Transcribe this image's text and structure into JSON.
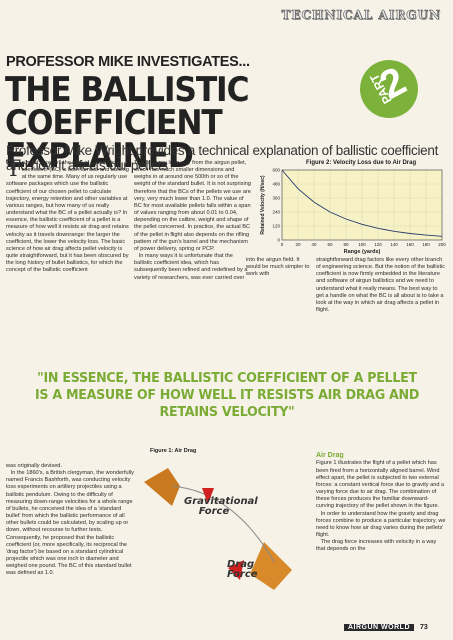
{
  "header": {
    "section": "TECHNICAL AIRGUN"
  },
  "kicker": "PROFESSOR MIKE INVESTIGATES...",
  "headline": {
    "line1": "THE BALLISTIC",
    "line2": "COEFFICIENT EXPLAINED"
  },
  "badge": {
    "word": "PART",
    "number": "2",
    "color": "#7db23a"
  },
  "subheading": "Professor Mike Wright provides a technical explanation of ballistic coefficient and how it affects our pellets",
  "body": {
    "col1": "o most shooters the idea of a 'ballistic coefficient' (BC) is both familiar and baffling at the same time. Many of us regularly use software packages which use the ballistic coefficient of our chosen pellet to calculate trajectory, energy retention and other variables at various ranges, but how many of us really understand what the BC of a pellet actually is? In essence, the ballistic coefficient of a pellet is a measure of how well it resists air drag and retains velocity as it travels downrange: the larger the coefficient, the lower the velocity loss. The basic science of how air drag affects pellet velocity is quite straightforward, but it has been obscured by the long history of bullet ballistics, for which the concept of the ballistic coefficient",
    "col1_dropcap": "T",
    "col2": "This is a very long way from the airgun pellet, which has much smaller dimensions and weighs in at around one 500th or so of the weight of the standard bullet. It is not surprising therefore that the BCs of the pellets we use are very, very much lower than 1.0. The value of BC for most available pellets falls within a span of values ranging from about 0.01 to 0.04, depending on the calibre, weight and shape of the pellet concerned. In practice, the actual BC of the pellet in flight also depends on the rifling pattern of the gun's barrel and the mechanism of power delivery, spring or PCP.\n   In many ways it is unfortunate that the ballistic coefficient idea, which has subsequently been refined and redefined by a variety of researchers, was ever carried over",
    "col2b": "into the airgun field. It would be much simpler to work with",
    "col3": "straightforward drag factors like every other branch of engineering science. But the notion of the ballistic coefficient is now firmly embedded in the literature and software of airgun ballistics and we need to understand what it really means. The best way to get a handle on what the BC is all about is to take a look at the way in which air drag affects a pellet in flight.",
    "col4": "was originally devised.\n   In the 1860's, a British clergyman, the wonderfully named Francis Bashforth, was conducting velocity loss experiments on artillery projectiles using a ballistic pendulum. Owing to the difficulty of measuring down-range velocities for a whole range of bullets, he conceived the idea of a 'standard bullet' from which the ballistic performance of all other bullets could be calculated, by scaling up or down, without recourse to further tests. Consequently, he proposed that the ballistic coefficient (or, more specifically, its reciprocal the 'drag factor') be based on a standard cylindrical projectile which was one inch in diameter and weighed one pound. The BC of this standard bullet was defined as 1.0.",
    "col5_head": "Air Drag",
    "col5": "Figure 1 illustrates the flight of a pellet which has been fired from a horizontally aligned barrel. Wind effect apart, the pellet is subjected to two external forces: a constant vertical force due to gravity and a varying force due to air drag. The combination of these forces produces the familiar downward-curving trajectory of the pellet shown in the figure.\n   In order to understand how the gravity and drag forces combine to produce a particular trajectory, we need to know how air drag varies during the pellets' flight.\n   The drag force increases with velocity in a way that depends on the"
  },
  "pull_quote": "\"IN ESSENCE, THE BALLISTIC COEFFICIENT OF A PELLET IS A MEASURE OF HOW WELL IT RESISTS AIR DRAG AND RETAINS VELOCITY\"",
  "figure1": {
    "title": "Figure 1: Air Drag",
    "gravity_label": "Gravitational Force",
    "drag_label": "Drag Force"
  },
  "chart_data": {
    "type": "line",
    "title": "Figure 2: Velocity Loss due to Air Drag",
    "xlabel": "Range (yards)",
    "ylabel": "Retained Velocity (ft/sec)",
    "xlim": [
      0,
      200
    ],
    "ylim": [
      0,
      600
    ],
    "x_ticks": [
      "0",
      "20",
      "40",
      "60",
      "80",
      "100",
      "120",
      "140",
      "160",
      "180",
      "200"
    ],
    "y_ticks": [
      "0",
      "120",
      "240",
      "360",
      "480",
      "600"
    ],
    "grid": true,
    "x": [
      0,
      20,
      40,
      60,
      80,
      100,
      120,
      140,
      160,
      180,
      200
    ],
    "y": [
      600,
      440,
      325,
      240,
      180,
      135,
      100,
      75,
      56,
      42,
      32
    ],
    "colors": {
      "line": "#2a3a6a",
      "fill": "#f6f2c6",
      "grid": "#9a9a9a"
    }
  },
  "footer": {
    "magazine": "AIRGUN WORLD",
    "page": "73"
  }
}
